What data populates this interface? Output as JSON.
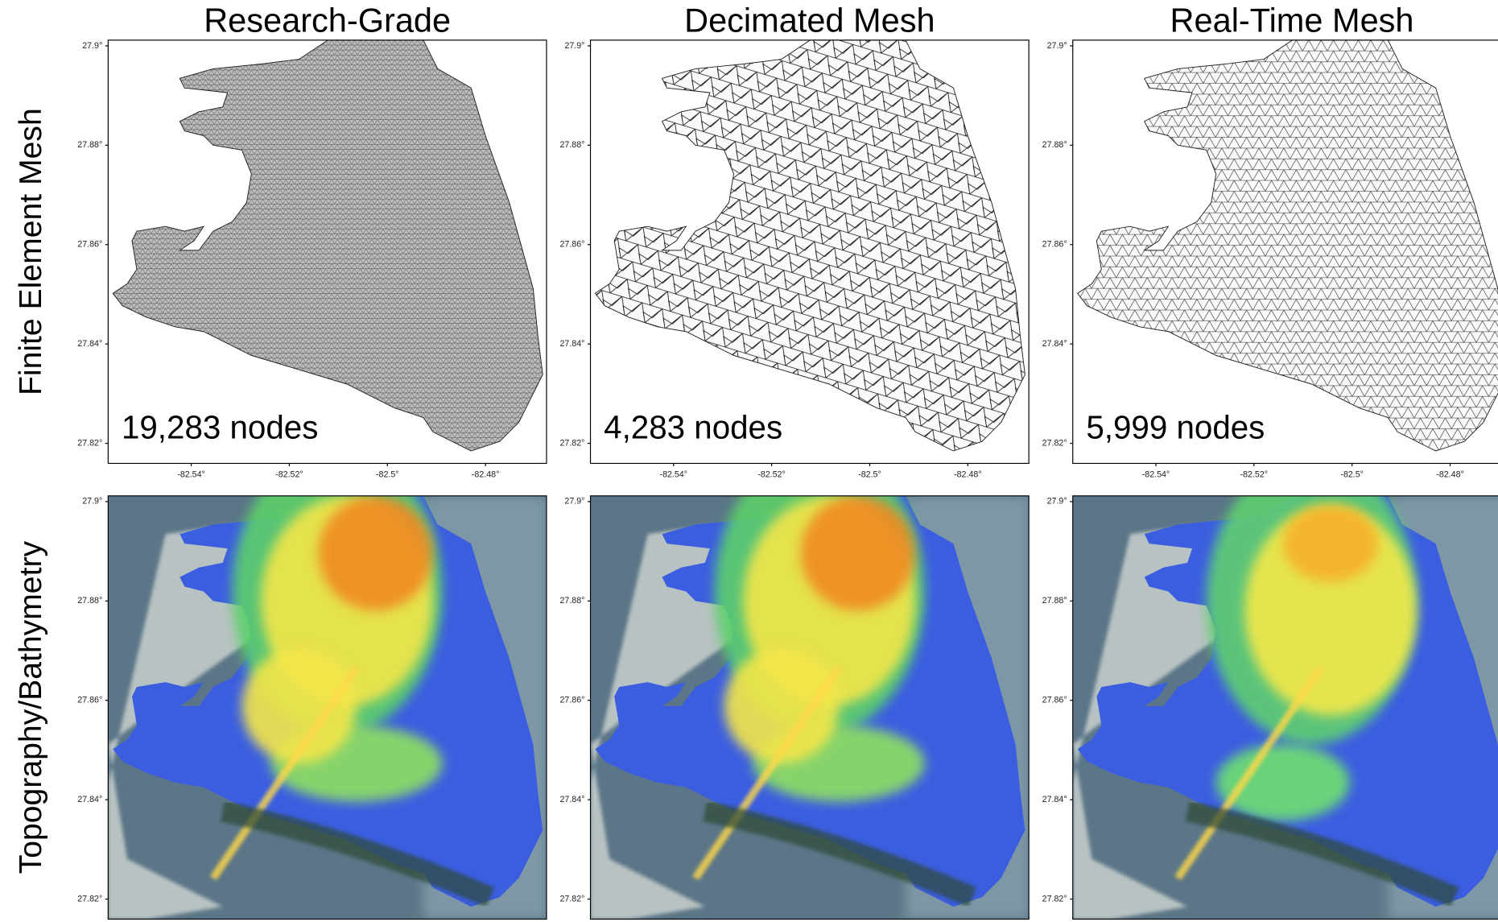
{
  "columns": [
    {
      "title": "Research-Grade",
      "nodes": "19,283 nodes"
    },
    {
      "title": "Decimated Mesh",
      "nodes": "4,283 nodes"
    },
    {
      "title": "Real-Time Mesh",
      "nodes": "5,999 nodes"
    }
  ],
  "rows": [
    "Finite Element Mesh",
    "Topography/Bathymetry"
  ],
  "lat_ticks": [
    "27.9°",
    "27.88°",
    "27.86°",
    "27.84°",
    "27.82°"
  ],
  "lon_ticks": [
    "-82.54°",
    "-82.52°",
    "-82.5°",
    "-82.48°"
  ]
}
